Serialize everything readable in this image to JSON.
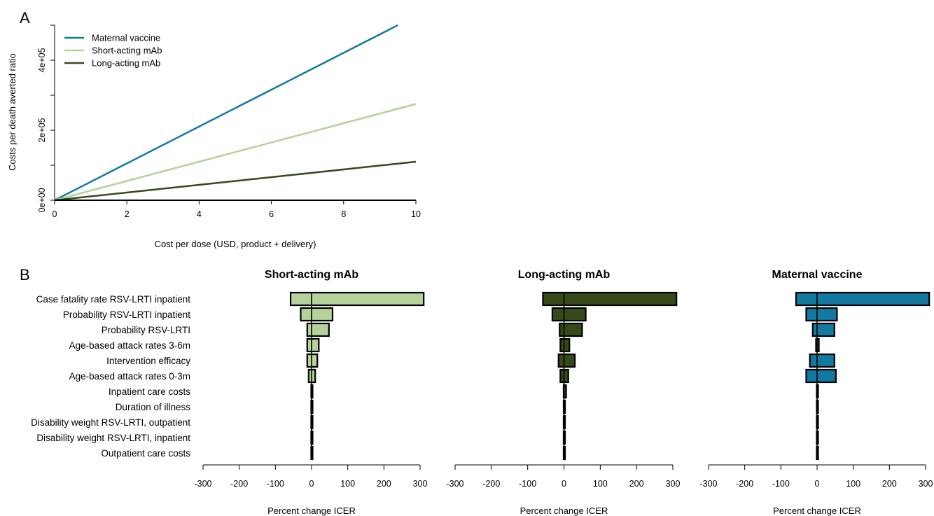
{
  "chart_data": [
    {
      "panel": "A",
      "type": "line",
      "xlabel": "Cost per dose (USD, product + delivery)",
      "ylabel": "Costs per death averted ratio",
      "xlim": [
        0,
        10
      ],
      "ylim": [
        0,
        500000
      ],
      "x_ticks": [
        "0",
        "2",
        "4",
        "6",
        "8",
        "10"
      ],
      "x_tick_values": [
        0,
        2,
        4,
        6,
        8,
        10
      ],
      "y_ticks": [
        "0e+00",
        "2e+05",
        "4e+05"
      ],
      "y_tick_values": [
        0,
        200000,
        400000
      ],
      "y_minor_tick_values": [
        100000,
        300000,
        500000
      ],
      "legend_position": "top-left",
      "series": [
        {
          "name": "Maternal vaccine",
          "color": "#1479a0",
          "x": [
            0,
            9.5
          ],
          "y": [
            0,
            500000
          ]
        },
        {
          "name": "Short-acting mAb",
          "color": "#b4d29a",
          "x": [
            0,
            10
          ],
          "y": [
            0,
            275000
          ]
        },
        {
          "name": "Long-acting mAb",
          "color": "#354a18",
          "x": [
            0,
            10
          ],
          "y": [
            0,
            110000
          ]
        }
      ]
    },
    {
      "panel": "B",
      "type": "bar",
      "orientation": "horizontal (tornado)",
      "xlabel": "Percent change ICER",
      "xlim": [
        -300,
        300
      ],
      "x_ticks": [
        "-300",
        "-200",
        "-100",
        "0",
        "100",
        "200",
        "300"
      ],
      "x_tick_values": [
        -300,
        -200,
        -100,
        0,
        100,
        200,
        300
      ],
      "categories": [
        "Case fatality rate RSV-LRTI inpatient",
        "Probability RSV-LRTI inpatient",
        "Probability RSV-LRTI",
        "Age-based attack rates 3-6m",
        "Intervention efficacy",
        "Age-based attack rates 0-3m",
        "Inpatient care costs",
        "Duration of illness",
        "Disability weight RSV-LRTI, outpatient",
        "Disability weight RSV-LRTI, inpatient",
        "Outpatient care costs"
      ],
      "panels": [
        {
          "title": "Short-acting mAb",
          "color": "#b4d29a",
          "low": [
            -58,
            -30,
            -12,
            -12,
            -12,
            -8,
            -1,
            -1,
            -1,
            -1,
            -1
          ],
          "high": [
            310,
            58,
            48,
            20,
            16,
            10,
            1,
            1,
            1,
            1,
            1
          ]
        },
        {
          "title": "Long-acting mAb",
          "color": "#354a18",
          "low": [
            -58,
            -32,
            -12,
            -10,
            -15,
            -10,
            -1,
            -1,
            -1,
            -1,
            -1
          ],
          "high": [
            310,
            60,
            50,
            15,
            30,
            12,
            6,
            1,
            1,
            1,
            1
          ]
        },
        {
          "title": "Maternal vaccine",
          "color": "#1479a0",
          "low": [
            -58,
            -30,
            -12,
            -3,
            -20,
            -30,
            -1,
            -1,
            -1,
            -1,
            -1
          ],
          "high": [
            310,
            55,
            48,
            5,
            48,
            52,
            1,
            1,
            1,
            1,
            1
          ]
        }
      ]
    }
  ]
}
